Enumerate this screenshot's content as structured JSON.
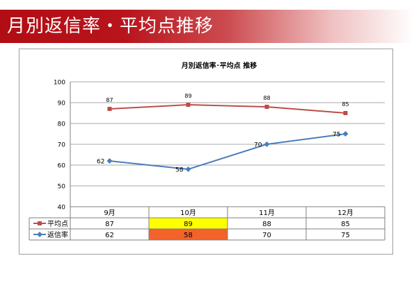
{
  "page": {
    "banner_title": "月別返信率・平均点推移"
  },
  "colors": {
    "banner": "#b20d15",
    "series_avg": "#be4b48",
    "series_reply": "#4a7ebb",
    "highlight_yellow": "#ffff00",
    "highlight_orange": "#f2622b"
  },
  "chart_data": {
    "type": "line",
    "title": "月別返信率･平均点 推移",
    "categories": [
      "9月",
      "10月",
      "11月",
      "12月"
    ],
    "ylim": [
      40,
      100
    ],
    "yticks": [
      40,
      50,
      60,
      70,
      80,
      90,
      100
    ],
    "grid": true,
    "legend": "data-table",
    "series": [
      {
        "name": "平均点",
        "values": [
          87,
          89,
          88,
          85
        ],
        "color": "#be4b48",
        "marker": "square"
      },
      {
        "name": "返信率",
        "values": [
          62,
          58,
          70,
          75
        ],
        "color": "#4a7ebb",
        "marker": "diamond"
      }
    ],
    "table_highlight": {
      "平均点": [
        null,
        "yellow",
        null,
        null
      ],
      "返信率": [
        null,
        "orange",
        null,
        null
      ]
    }
  }
}
